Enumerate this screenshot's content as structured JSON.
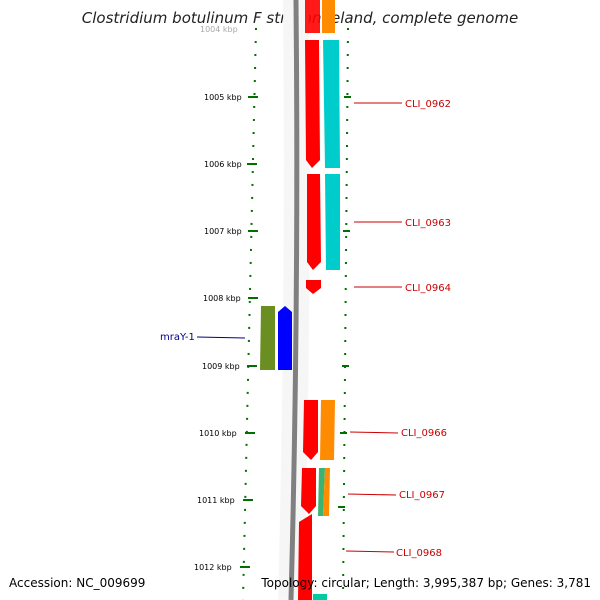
{
  "title": "Clostridium botulinum F str. Langeland, complete genome",
  "accession": "Accession: NC_009699",
  "summary": "Topology: circular; Length: 3,995,387 bp; Genes: 3,781",
  "scale": {
    "top_partial_label": "1004 kbp",
    "ticks": [
      "1005 kbp",
      "1006 kbp",
      "1007 kbp",
      "1008 kbp",
      "1009 kbp",
      "1010 kbp",
      "1011 kbp",
      "1012 kbp"
    ]
  },
  "gene_labels": [
    {
      "text": "CLI_0962",
      "color": "#cc0000"
    },
    {
      "text": "CLI_0963",
      "color": "#cc0000"
    },
    {
      "text": "CLI_0964",
      "color": "#cc0000"
    },
    {
      "text": "mraY-1",
      "color": "#00008b"
    },
    {
      "text": "CLI_0966",
      "color": "#cc0000"
    },
    {
      "text": "CLI_0967",
      "color": "#cc0000"
    },
    {
      "text": "CLI_0968",
      "color": "#cc0000"
    }
  ],
  "colors": {
    "backbone": "#808080",
    "cds": "#ff0000",
    "cds_reverse": "#0000ff",
    "feature_reverse": "#6b8e23",
    "feature_cyan": "#00cccc",
    "feature_orange": "#ff8c00",
    "feature_green": "#3cb371",
    "tick": "#007000",
    "forward_label": "#cc0000",
    "reverse_label": "#00008b"
  }
}
